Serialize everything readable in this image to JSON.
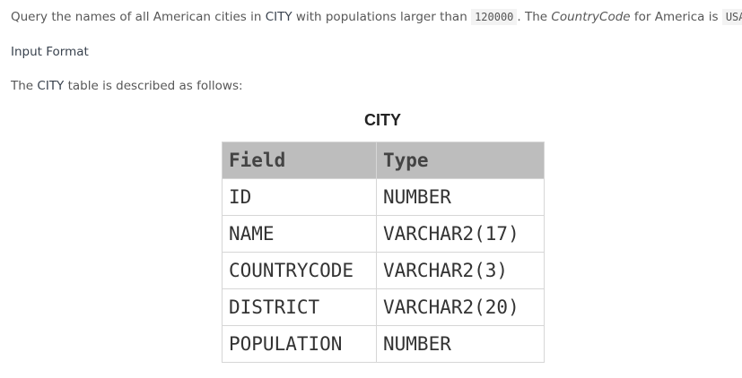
{
  "intro": [
    "Query the names of all American cities in ",
    "CITY",
    " with populations larger than ",
    "120000",
    ". The ",
    "CountryCode",
    " for America is ",
    "USA",
    "."
  ],
  "input_format_heading": "Input Format",
  "description": [
    "The ",
    "CITY",
    " table is described as follows:"
  ],
  "table": {
    "title": "CITY",
    "header": [
      "Field",
      "Type"
    ],
    "rows": [
      [
        "ID",
        "NUMBER"
      ],
      [
        "NAME",
        "VARCHAR2(17)"
      ],
      [
        "COUNTRYCODE",
        "VARCHAR2(3)"
      ],
      [
        "DISTRICT",
        "VARCHAR2(20)"
      ],
      [
        "POPULATION",
        "NUMBER"
      ]
    ]
  }
}
